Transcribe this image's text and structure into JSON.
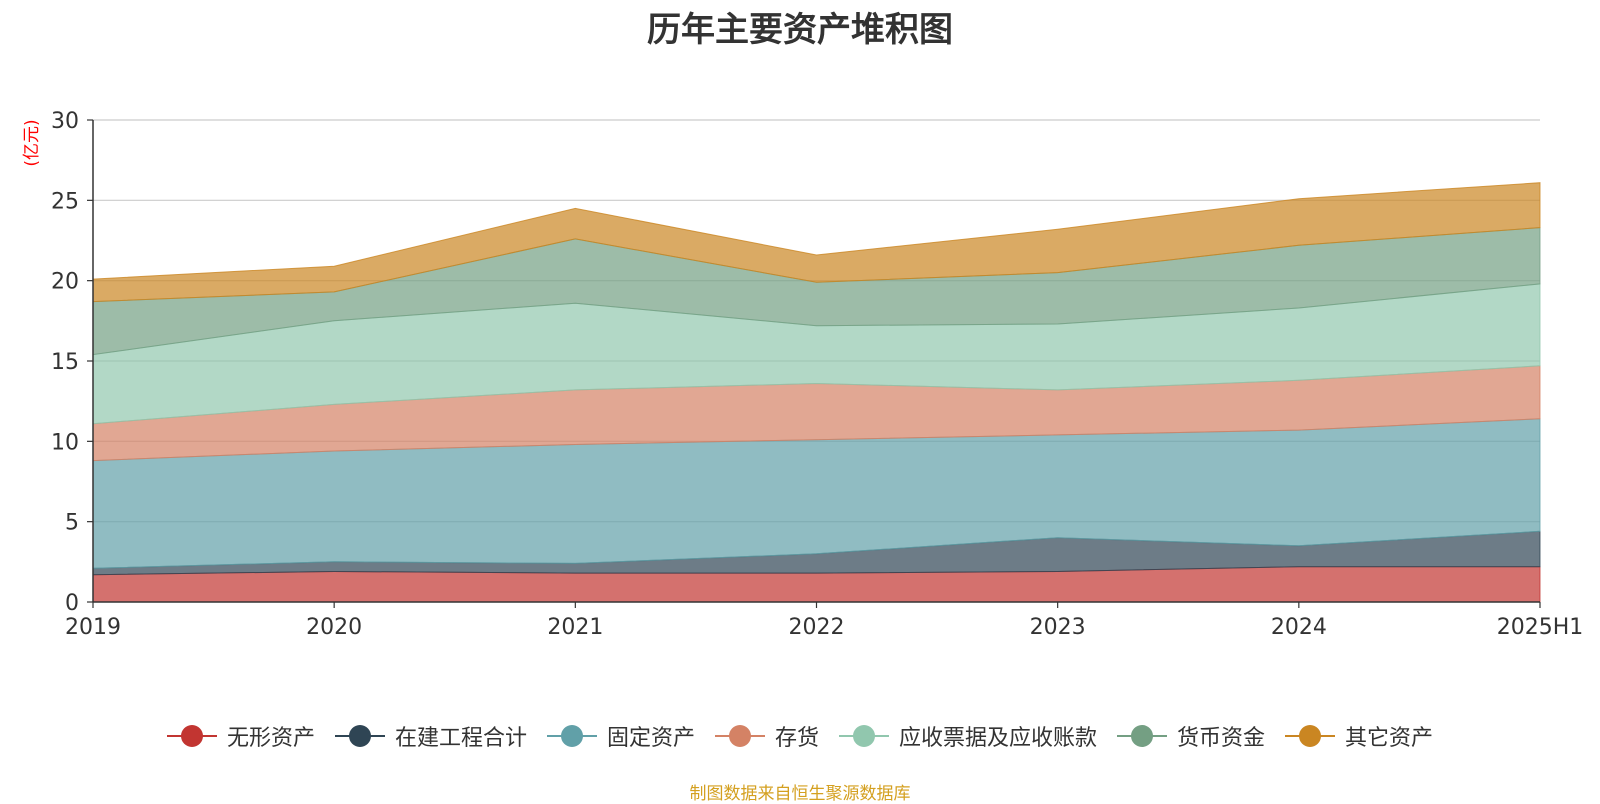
{
  "chart_data": {
    "type": "area",
    "stacked": true,
    "title": "历年主要资产堆积图",
    "ylabel": "(亿元)",
    "xlabel": "",
    "ylim": [
      0,
      30
    ],
    "yticks": [
      0,
      5,
      10,
      15,
      20,
      25,
      30
    ],
    "categories": [
      "2019",
      "2020",
      "2021",
      "2022",
      "2023",
      "2024",
      "2025H1"
    ],
    "grid": true,
    "legend_position": "bottom",
    "series": [
      {
        "name": "无形资产",
        "color": "#c23531",
        "values": [
          1.7,
          1.9,
          1.8,
          1.8,
          1.9,
          2.2,
          2.2
        ]
      },
      {
        "name": "在建工程合计",
        "color": "#2f4554",
        "values": [
          0.4,
          0.6,
          0.6,
          1.2,
          2.1,
          1.3,
          2.2
        ]
      },
      {
        "name": "固定资产",
        "color": "#61a0a8",
        "values": [
          6.7,
          6.9,
          7.4,
          7.1,
          6.4,
          7.2,
          7.0
        ]
      },
      {
        "name": "存货",
        "color": "#d48265",
        "values": [
          2.3,
          2.9,
          3.4,
          3.5,
          2.8,
          3.1,
          3.3
        ]
      },
      {
        "name": "应收票据及应收账款",
        "color": "#91c7ae",
        "values": [
          4.3,
          5.2,
          5.4,
          3.6,
          4.1,
          4.5,
          5.1
        ]
      },
      {
        "name": "货币资金",
        "color": "#749f83",
        "values": [
          3.3,
          1.8,
          4.0,
          2.7,
          3.2,
          3.9,
          3.5
        ]
      },
      {
        "name": "其它资产",
        "color": "#ca8622",
        "values": [
          1.4,
          1.6,
          1.9,
          1.7,
          2.7,
          2.9,
          2.8
        ]
      }
    ]
  },
  "source_note": "制图数据来自恒生聚源数据库"
}
